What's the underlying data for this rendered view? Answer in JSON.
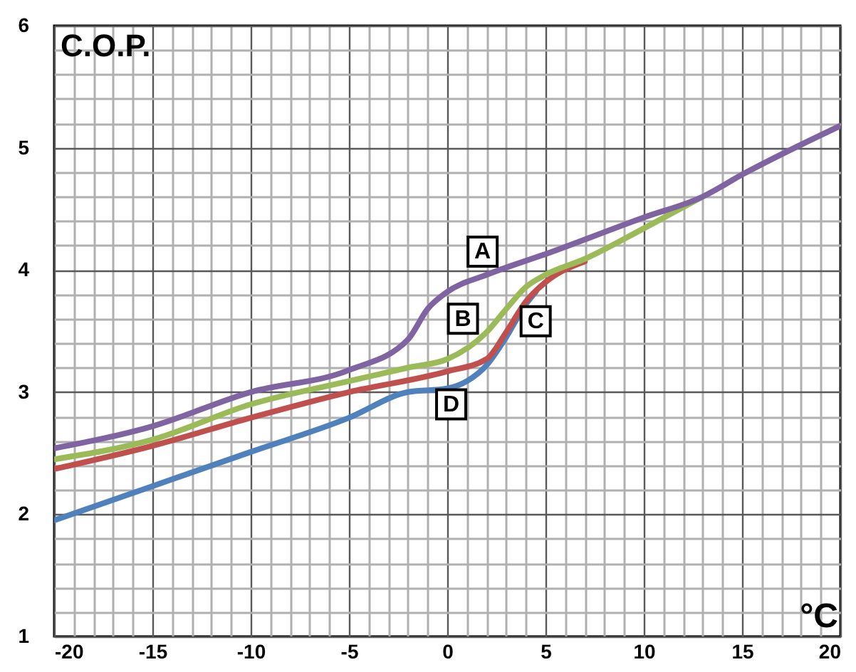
{
  "chart_data": {
    "type": "line",
    "xlabel": "°C",
    "ylabel": "C.O.P.",
    "series": [
      {
        "color": "#4f81bd",
        "x": [
          -20,
          -15,
          -10,
          -5,
          -2,
          0,
          1,
          2,
          3,
          4,
          4.5
        ],
        "values": [
          1.95,
          2.23,
          2.51,
          2.79,
          3.0,
          3.03,
          3.09,
          3.22,
          3.45,
          3.72,
          3.82
        ]
      },
      {
        "color": "#c0504d",
        "x": [
          -20,
          -15,
          -10,
          -5,
          0,
          2,
          3,
          4,
          5,
          7
        ],
        "values": [
          2.37,
          2.56,
          2.79,
          3.0,
          3.17,
          3.27,
          3.49,
          3.74,
          3.9,
          4.07
        ]
      },
      {
        "color": "#9bbb59",
        "x": [
          -20,
          -15,
          -10,
          -5,
          -2,
          0,
          2,
          3,
          4,
          5,
          7,
          10,
          13
        ],
        "values": [
          2.45,
          2.61,
          2.9,
          3.09,
          3.2,
          3.27,
          3.49,
          3.68,
          3.86,
          3.96,
          4.09,
          4.34,
          4.6
        ]
      },
      {
        "color": "#8064a2",
        "x": [
          -20,
          -15,
          -10,
          -5,
          -2,
          -1,
          0,
          2,
          5,
          10,
          13,
          15,
          20
        ],
        "values": [
          2.54,
          2.72,
          3.0,
          3.18,
          3.43,
          3.68,
          3.82,
          3.96,
          4.13,
          4.43,
          4.6,
          4.78,
          5.18
        ]
      }
    ],
    "annotations": [
      {
        "text": "A",
        "x": 1.8,
        "y": 4.15
      },
      {
        "text": "B",
        "x": 0.8,
        "y": 3.6
      },
      {
        "text": "C",
        "x": 4.5,
        "y": 3.58
      },
      {
        "text": "D",
        "x": 0.2,
        "y": 2.9
      }
    ],
    "xlim": [
      -20,
      20
    ],
    "ylim": [
      1,
      6
    ],
    "xticks": [
      -20,
      {
        "value": -19,
        "label": null
      },
      {
        "value": -18,
        "label": null
      },
      {
        "value": -17,
        "label": null
      },
      {
        "value": -16,
        "label": null
      },
      -15,
      {
        "value": -14,
        "label": null
      },
      {
        "value": -13,
        "label": null
      },
      {
        "value": -12,
        "label": null
      },
      {
        "value": -11,
        "label": null
      },
      -10,
      {
        "value": -9,
        "label": null
      },
      {
        "value": -8,
        "label": null
      },
      {
        "value": -7,
        "label": null
      },
      {
        "value": -6,
        "label": null
      },
      -5,
      {
        "value": -4,
        "label": null
      },
      {
        "value": -3,
        "label": null
      },
      {
        "value": -2,
        "label": null
      },
      {
        "value": -1,
        "label": null
      },
      0,
      {
        "value": 1,
        "label": null
      },
      {
        "value": 2,
        "label": null
      },
      {
        "value": 3,
        "label": null
      },
      {
        "value": 4,
        "label": null
      },
      5,
      {
        "value": 6,
        "label": null
      },
      {
        "value": 7,
        "label": null
      },
      {
        "value": 8,
        "label": null
      },
      {
        "value": 9,
        "label": null
      },
      10,
      {
        "value": 11,
        "label": null
      },
      {
        "value": 12,
        "label": null
      },
      {
        "value": 13,
        "label": null
      },
      {
        "value": 14,
        "label": null
      },
      15,
      {
        "value": 16,
        "label": null
      },
      {
        "value": 17,
        "label": null
      },
      {
        "value": 18,
        "label": null
      },
      {
        "value": 19,
        "label": null
      },
      20
    ],
    "yticks": [
      1,
      {
        "value": 1.2,
        "label": null
      },
      {
        "value": 1.4,
        "label": null
      },
      {
        "value": 1.6,
        "label": null
      },
      {
        "value": 1.8,
        "label": null
      },
      2,
      {
        "value": 2.2,
        "label": null
      },
      {
        "value": 2.4,
        "label": null
      },
      {
        "value": 2.6,
        "label": null
      },
      {
        "value": 2.8,
        "label": null
      },
      3,
      {
        "value": 3.2,
        "label": null
      },
      {
        "value": 3.4,
        "label": null
      },
      {
        "value": 3.6,
        "label": null
      },
      {
        "value": 3.8,
        "label": null
      },
      4,
      {
        "value": 4.2,
        "label": null
      },
      {
        "value": 4.4,
        "label": null
      },
      {
        "value": 4.6,
        "label": null
      },
      {
        "value": 4.8,
        "label": null
      },
      5,
      {
        "value": 5.2,
        "label": null
      },
      {
        "value": 5.4,
        "label": null
      },
      {
        "value": 5.6,
        "label": null
      },
      {
        "value": 5.8,
        "label": null
      },
      6
    ],
    "grid": true,
    "marker": "none",
    "line_style": "solid"
  }
}
